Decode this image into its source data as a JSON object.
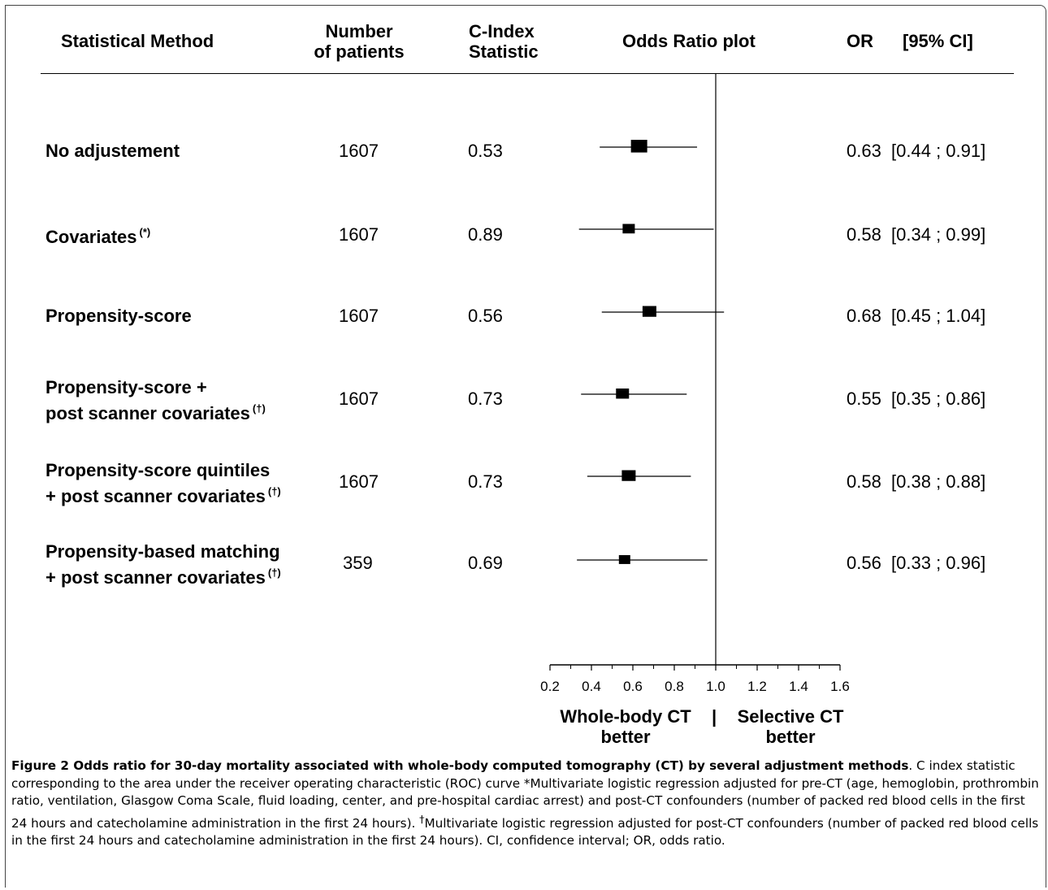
{
  "header": {
    "method": "Statistical Method",
    "patients_1": "Number",
    "patients_2": "of patients",
    "cindex_1": "C-Index",
    "cindex_2": "Statistic",
    "plot": "Odds Ratio plot",
    "or": "OR",
    "ci": "[95% CI]"
  },
  "rows": [
    {
      "label1": "No adjustement",
      "label2": "",
      "sup": "",
      "patients": "1607",
      "cindex": "0.53",
      "or_text": "0.63  [0.44 ; 0.91]"
    },
    {
      "label1": "Covariates",
      "label2": "",
      "sup": "(*)",
      "patients": "1607",
      "cindex": "0.89",
      "or_text": "0.58  [0.34 ; 0.99]"
    },
    {
      "label1": "Propensity-score",
      "label2": "",
      "sup": "",
      "patients": "1607",
      "cindex": "0.56",
      "or_text": "0.68  [0.45 ; 1.04]"
    },
    {
      "label1": "Propensity-score +",
      "label2": "post scanner covariates",
      "sup": "(†)",
      "patients": "1607",
      "cindex": "0.73",
      "or_text": "0.55  [0.35 ; 0.86]"
    },
    {
      "label1": "Propensity-score quintiles",
      "label2": "+  post  scanner covariates",
      "sup": "(†)",
      "patients": "1607",
      "cindex": "0.73",
      "or_text": "0.58  [0.38 ; 0.88]"
    },
    {
      "label1": "Propensity-based matching",
      "label2": "+ post  scanner covariates",
      "sup": "(†)",
      "patients": "359",
      "cindex": "0.69",
      "or_text": "0.56  [0.33 ; 0.96]"
    }
  ],
  "chart_data": {
    "type": "forest",
    "xlim": [
      0.2,
      1.6
    ],
    "xticks": [
      "0.2",
      "0.4",
      "0.6",
      "0.8",
      "1.0",
      "1.2",
      "1.4",
      "1.6"
    ],
    "reference_line": 1.0,
    "points": [
      {
        "or": 0.63,
        "low": 0.44,
        "high": 0.91
      },
      {
        "or": 0.58,
        "low": 0.34,
        "high": 0.99
      },
      {
        "or": 0.68,
        "low": 0.45,
        "high": 1.04
      },
      {
        "or": 0.55,
        "low": 0.35,
        "high": 0.86
      },
      {
        "or": 0.58,
        "low": 0.38,
        "high": 0.88
      },
      {
        "or": 0.56,
        "low": 0.33,
        "high": 0.96
      }
    ],
    "left_label_1": "Whole-body CT",
    "left_label_2": "better",
    "divider": "|",
    "right_label_1": "Selective CT",
    "right_label_2": "better"
  },
  "caption": {
    "title": "Figure 2 Odds ratio for 30-day mortality associated with whole-body computed tomography (CT) by several adjustment methods",
    "body_a": ". C index statistic corresponding to the area under the receiver operating characteristic (ROC) curve *Multivariate logistic regression adjusted for pre-CT (age, hemoglobin, prothrombin ratio, ventilation, Glasgow Coma Scale, fluid loading, center, and pre-hospital cardiac arrest) and post-CT confounders (number of packed red blood cells in the first 24 hours and catecholamine administration in the first 24 hours). ",
    "dagger": "†",
    "body_b": "Multivariate logistic regression adjusted for post-CT confounders (number of packed red blood cells in the first 24 hours and catecholamine administration in the first 24 hours). CI, confidence interval; OR, odds ratio."
  }
}
